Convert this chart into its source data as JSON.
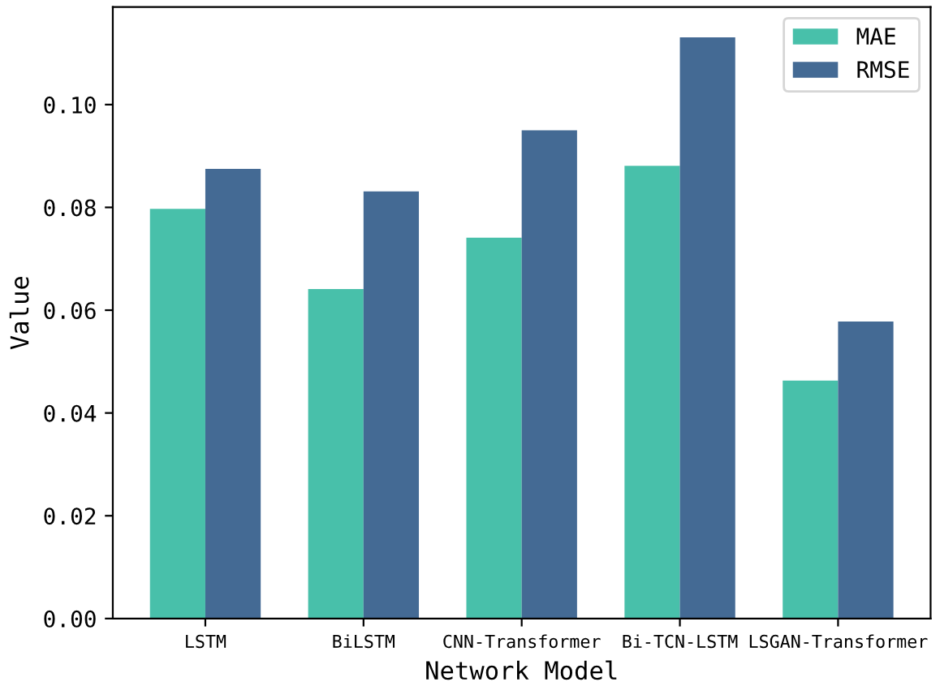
{
  "chart_data": {
    "type": "bar",
    "xlabel": "Network Model",
    "ylabel": "Value",
    "categories": [
      "LSTM",
      "BiLSTM",
      "CNN-Transformer",
      "Bi-TCN-LSTM",
      "LSGAN-Transformer"
    ],
    "series": [
      {
        "name": "MAE",
        "color": "#48c0aa",
        "values": [
          0.0797,
          0.0641,
          0.0741,
          0.0881,
          0.0463
        ]
      },
      {
        "name": "RMSE",
        "color": "#446a94",
        "values": [
          0.0875,
          0.0831,
          0.095,
          0.1131,
          0.0578
        ]
      }
    ],
    "ylim": [
      0,
      0.119
    ],
    "yticks": [
      {
        "value": 0,
        "label": "0.00"
      },
      0.02,
      0.04,
      0.06,
      0.08,
      {
        "value": 0.1,
        "label": "0.10"
      }
    ],
    "grid": false,
    "legend": "top right"
  }
}
